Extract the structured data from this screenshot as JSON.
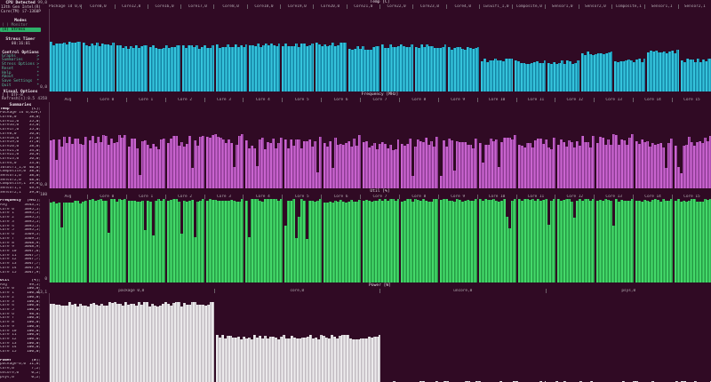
{
  "colors": {
    "background": "#300a24",
    "selected_mode_bg": "#2eb06a",
    "menu_text": "#58bd9d",
    "temp_bar_light": "#35c4dc",
    "temp_bar_dark": "#1585a5",
    "freq_bar_light": "#c964cf",
    "freq_bar_dark": "#8e3b94",
    "util_bar_light": "#44d96a",
    "util_bar_dark": "#259a44",
    "power_bar_light": "#eceaec",
    "power_bar_dark": "#c2bcc2"
  },
  "sidebar": {
    "cpu": {
      "title": "CPU Detected",
      "line1": "13th Gen Intel(R)",
      "line2": "Core(TM) i7-1360P"
    },
    "modes": {
      "title": "Modes",
      "items": [
        {
          "label": "( ) Monitor",
          "selected": false
        },
        {
          "label": "(X) Stress",
          "selected": true
        }
      ]
    },
    "stress_timer": {
      "title": "Stress Timer",
      "value": "00:16:01"
    },
    "control_options": {
      "title": "Control Options",
      "items": [
        {
          "label": "Graphs",
          "suffix": ">"
        },
        {
          "label": "Summaries",
          "suffix": ">"
        },
        {
          "label": "Stress Options",
          "suffix": ">"
        },
        {
          "label": "Reset",
          "suffix": "*"
        },
        {
          "label": "Help",
          "suffix": "*"
        },
        {
          "label": "About",
          "suffix": "*"
        },
        {
          "label": "Save Settings",
          "suffix": "*"
        },
        {
          "label": "Quit",
          "suffix": "*"
        }
      ]
    },
    "visual_options": {
      "title": "Visual Options",
      "items": [
        "[ ] UTF-8",
        "Refresh[s]:0.5"
      ]
    },
    "summaries": {
      "title": "Summaries",
      "sections": [
        {
          "name": "Temp",
          "unit": "[C]",
          "rows": [
            [
              "Package id 0,0",
              "59,0"
            ],
            [
              "Core0,0",
              "58,0"
            ],
            [
              "Core12,0",
              "55,0"
            ],
            [
              "Core16,0",
              "55,0"
            ],
            [
              "Core17,0",
              "55,0"
            ],
            [
              "Core8,0",
              "56,0"
            ],
            [
              "Core18,0",
              "57,0"
            ],
            [
              "Core19,0",
              "57,0"
            ],
            [
              "Core20,0",
              "58,0"
            ],
            [
              "Core21,0",
              "54,0"
            ],
            [
              "Core22,0",
              "56,0"
            ],
            [
              "Core23,0",
              "56,0"
            ],
            [
              "Core4,0",
              "53,0"
            ],
            [
              "iwlwifi_1,0",
              "40,0"
            ],
            [
              "Composite,0",
              "38,0"
            ],
            [
              "Sensor1,0",
              "38,0"
            ],
            [
              "Sensor2,0",
              "48,0"
            ],
            [
              "Composite,1",
              "39,0"
            ],
            [
              "Sensor1,1",
              "49,9"
            ],
            [
              "Sensor2,1",
              "39,0"
            ]
          ]
        },
        {
          "name": "Frequency",
          "unit": "[MHz]",
          "rows": [
            [
              "Avg",
              "3443,1"
            ],
            [
              "Core 0",
              "3895,5"
            ],
            [
              "Core 1",
              "3895,5"
            ],
            [
              "Core 2",
              "3895,5"
            ],
            [
              "Core 3",
              "3895,5"
            ],
            [
              "Core 4",
              "3895,5"
            ],
            [
              "Core 5",
              "3895,5"
            ],
            [
              "Core 6",
              "3369,5"
            ],
            [
              "Core 7",
              "3369,5"
            ],
            [
              "Core 8",
              "3048,9"
            ],
            [
              "Core 9",
              "3048,9"
            ],
            [
              "Core 10",
              "3047,6"
            ],
            [
              "Core 11",
              "3047,7"
            ],
            [
              "Core 12",
              "3047,7"
            ],
            [
              "Core 13",
              "3047,7"
            ],
            [
              "Core 14",
              "3047,9"
            ],
            [
              "Core 15",
              "3047,9"
            ]
          ]
        },
        {
          "name": "Util",
          "unit": "[%]",
          "rows": [
            [
              "Avg",
              "99,5"
            ],
            [
              "Core 0",
              "100,0"
            ],
            [
              "Core 1",
              "100,0"
            ],
            [
              "Core 2",
              "100,0"
            ],
            [
              "Core 3",
              "100,0"
            ],
            [
              "Core 4",
              "100,0"
            ],
            [
              "Core 5",
              "100,0"
            ],
            [
              "Core 6",
              "98,8"
            ],
            [
              "Core 7",
              "100,0"
            ],
            [
              "Core 8",
              "100,0"
            ],
            [
              "Core 9",
              "100,0"
            ],
            [
              "Core 10",
              "100,0"
            ],
            [
              "Core 11",
              "100,0"
            ],
            [
              "Core 12",
              "100,0"
            ],
            [
              "Core 13",
              "100,0"
            ],
            [
              "Core 14",
              "100,0"
            ],
            [
              "Core 15",
              "100,0"
            ]
          ]
        },
        {
          "name": "Power",
          "unit": "[W]",
          "rows": [
            [
              "package-0,0",
              "11,8"
            ],
            [
              "core,0",
              "7,2"
            ],
            [
              "uncore,0",
              "0,2"
            ],
            [
              "psys,0",
              "0,2"
            ]
          ]
        }
      ]
    }
  },
  "graphs": [
    {
      "id": "temp",
      "title": "Temp [C]",
      "scale_max": "99,0",
      "scale_min": "0,0",
      "labels": [
        "Package id 0,0",
        "Core0,0",
        "Core12,0",
        "Core16,0",
        "Core17,0",
        "Core8,0",
        "Core18,0",
        "Core19,0",
        "Core20,0",
        "Core21,0",
        "Core22,0",
        "Core23,0",
        "Core4,0",
        "iwlwifi_1,0",
        "Composite,0",
        "Sensor1,0",
        "Sensor2,0",
        "Composite,1",
        "Sensor1,1",
        "Sensor2,1"
      ],
      "values": [
        59,
        58,
        55,
        55,
        55,
        56,
        57,
        57,
        58,
        54,
        56,
        56,
        53,
        40,
        38,
        38,
        48,
        39,
        50,
        39
      ],
      "heights": [
        0.6,
        0.59,
        0.56,
        0.56,
        0.56,
        0.57,
        0.58,
        0.58,
        0.59,
        0.55,
        0.57,
        0.57,
        0.54,
        0.4,
        0.38,
        0.38,
        0.48,
        0.4,
        0.5,
        0.4
      ],
      "jitter": 4,
      "deep_dip_prob": 0.0,
      "light": "#35c4dc",
      "dark": "#1585a5"
    },
    {
      "id": "freq",
      "title": "Frequency [MHz]",
      "scale_max": "4358",
      "scale_min": "0,0",
      "labels": [
        "Avg",
        "Core 0",
        "Core 1",
        "Core 2",
        "Core 3",
        "Core 4",
        "Core 5",
        "Core 6",
        "Core 7",
        "Core 8",
        "Core 9",
        "Core 10",
        "Core 11",
        "Core 12",
        "Core 13",
        "Core 14",
        "Core 15"
      ],
      "heights": [
        0.6,
        0.62,
        0.58,
        0.61,
        0.63,
        0.59,
        0.6,
        0.62,
        0.57,
        0.6,
        0.58,
        0.62,
        0.59,
        0.61,
        0.63,
        0.58,
        0.61
      ],
      "jitter": 13,
      "deep_dip_prob": 0.06,
      "light": "#c964cf",
      "dark": "#8e3b94"
    },
    {
      "id": "util",
      "title": "Util [%]",
      "scale_max": "100",
      "scale_min": "0",
      "labels": [
        "Avg",
        "Core 0",
        "Core 1",
        "Core 2",
        "Core 3",
        "Core 4",
        "Core 5",
        "Core 6",
        "Core 7",
        "Core 8",
        "Core 9",
        "Core 10",
        "Core 11",
        "Core 12",
        "Core 13",
        "Core 14",
        "Core 15"
      ],
      "heights": [
        0.98,
        1,
        1,
        1,
        1,
        1,
        1,
        0.99,
        1,
        1,
        1,
        1,
        1,
        1,
        1,
        1,
        1
      ],
      "jitter": 3,
      "deep_dip_prob": 0.1,
      "light": "#44d96a",
      "dark": "#259a44"
    },
    {
      "id": "power",
      "title": "Power [W]",
      "scale_max": "13,1",
      "scale_min": "",
      "labels": [
        "package 0,0",
        "core,0",
        "uncore,0",
        "psys,0"
      ],
      "heights": [
        0.9,
        0.53,
        0.012,
        0.012
      ],
      "jitter": 5,
      "deep_dip_prob": 0.0,
      "light": "#eceaec",
      "dark": "#c2bcc2"
    }
  ]
}
